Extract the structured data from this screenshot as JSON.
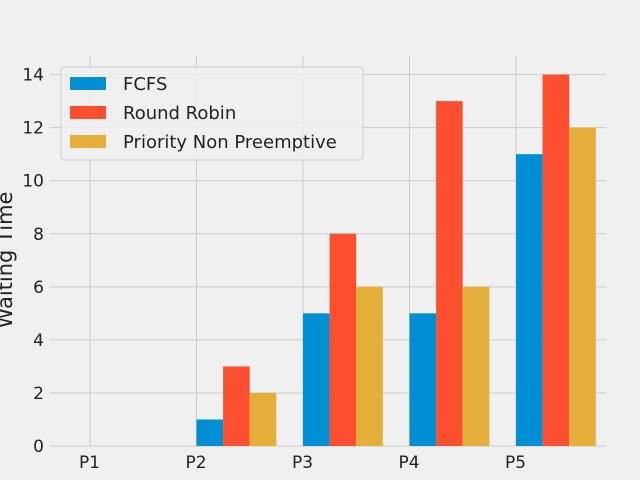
{
  "chart_data": {
    "type": "bar",
    "title": "",
    "xlabel": "",
    "ylabel": "Waiting Time",
    "categories": [
      "P1",
      "P2",
      "P3",
      "P4",
      "P5"
    ],
    "series": [
      {
        "name": "FCFS",
        "color": "#008fd5",
        "values": [
          0,
          1,
          5,
          5,
          11
        ]
      },
      {
        "name": "Round Robin",
        "color": "#fc4f30",
        "values": [
          0,
          3,
          8,
          13,
          14
        ]
      },
      {
        "name": "Priority Non Preemptive",
        "color": "#e5ae38",
        "values": [
          0,
          2,
          6,
          6,
          12
        ]
      }
    ],
    "ylim": [
      0,
      14.7
    ],
    "yticks": [
      0,
      2,
      4,
      6,
      8,
      10,
      12,
      14
    ],
    "grid": true,
    "legend_position": "top-left",
    "background": "#f0f0f0",
    "grid_color": "#cbcbcb"
  }
}
